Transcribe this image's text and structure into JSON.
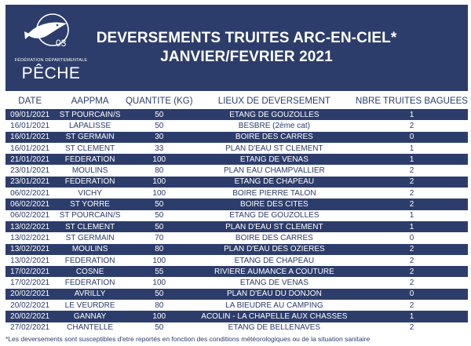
{
  "logo": {
    "number": "03",
    "federation": "FÉDÉRATION DÉPARTEMENTALE",
    "peche": "PÊCHE"
  },
  "title": {
    "line1": "DEVERSEMENTS TRUITES ARC-EN-CIEL*",
    "line2": "JANVIER/FEVRIER 2021"
  },
  "table": {
    "headers": [
      "DATE",
      "AAPPMA",
      "QUANTITE  (KG)",
      "LIEUX DE DEVERSEMENT",
      "NBRE TRUITES BAGUEES"
    ],
    "rows": [
      [
        "09/01/2021",
        "ST POURCAIN/S",
        "50",
        "ETANG DE GOUZOLLES",
        "1"
      ],
      [
        "16/01/2021",
        "LAPALISSE",
        "50",
        "BESBRE (2ème cat)",
        "2"
      ],
      [
        "16/01/2021",
        "ST GERMAIN",
        "30",
        "BOIRE DES CARRES",
        "0"
      ],
      [
        "16/01/2021",
        "ST CLEMENT",
        "33",
        "PLAN D'EAU ST CLEMENT",
        "1"
      ],
      [
        "21/01/2021",
        "FEDERATION",
        "100",
        "ETANG DE VENAS",
        "1"
      ],
      [
        "23/01/2021",
        "MOULINS",
        "80",
        "PLAN EAU CHAMPVALLIER",
        "2"
      ],
      [
        "23/01/2021",
        "FEDERATION",
        "100",
        "ETANG DE CHAPEAU",
        "2"
      ],
      [
        "06/02/2021",
        "VICHY",
        "100",
        "BOIRE PIERRE TALON",
        "2"
      ],
      [
        "06/02/2021",
        "ST YORRE",
        "50",
        "BOIRE DES CITES",
        "2"
      ],
      [
        "06/02/2021",
        "ST POURCAIN/S",
        "50",
        "ETANG DE GOUZOLLES",
        "1"
      ],
      [
        "13/02/2021",
        "ST CLEMENT",
        "50",
        "PLAN D'EAU ST CLEMENT",
        "1"
      ],
      [
        "13/02/2021",
        "ST GERMAIN",
        "70",
        "BOIRE DES CARRES",
        "0"
      ],
      [
        "13/02/2021",
        "MOULINS",
        "80",
        "PLAN D'EAU DES OZIERES",
        "2"
      ],
      [
        "13/02/2021",
        "FEDERATION",
        "100",
        "ETANG DE CHAPEAU",
        "2"
      ],
      [
        "17/02/2021",
        "COSNE",
        "55",
        "RIVIERE AUMANCE A COUTURE",
        "2"
      ],
      [
        "17/02/2021",
        "FEDERATION",
        "100",
        "ETANG DE VENAS",
        "2"
      ],
      [
        "20/02/2021",
        "AVRILLY",
        "50",
        "PLAN D'EAU DU DONJON",
        "0"
      ],
      [
        "20/02/2021",
        "LE VEURDRE",
        "80",
        "LA BIEUDRE AU CAMPING",
        "2"
      ],
      [
        "20/02/2021",
        "GANNAY",
        "100",
        "ACOLIN - LA CHAPELLE AUX CHASSES",
        "1"
      ],
      [
        "27/02/2021",
        "CHANTELLE",
        "50",
        "ETANG DE BELLENAVES",
        "2"
      ]
    ]
  },
  "footnote": "*Les deversements sont susceptibles d'etre reportés en fonction des conditions météorologiques ou de la situation sanitaire",
  "colors": {
    "navy": "#2d3d6b",
    "white": "#ffffff"
  }
}
